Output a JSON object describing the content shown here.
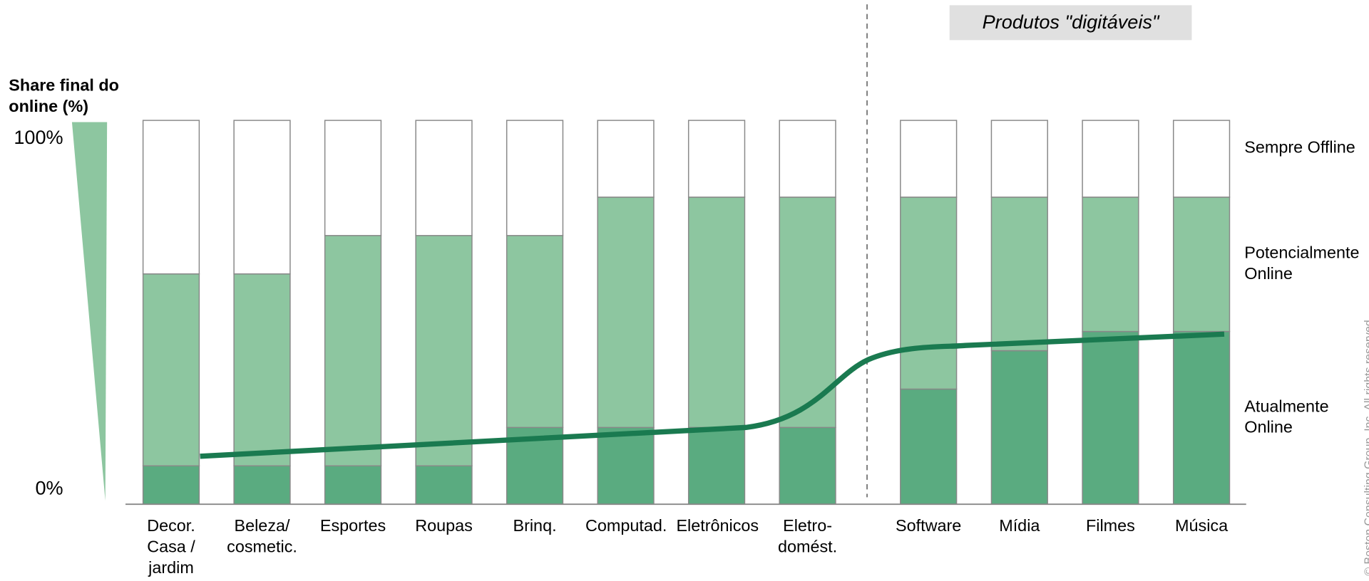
{
  "chart_data": {
    "type": "bar",
    "stacked": true,
    "y_axis_title": "Share final do online (%)",
    "annotation": "Produtos \"digitáveis\"",
    "categories": [
      "Decor. Casa / jardim",
      "Beleza/ cosmetic.",
      "Esportes",
      "Roupas",
      "Brinq.",
      "Computad.",
      "Eletrônicos",
      "Eletro-domést.",
      "Software",
      "Mídia",
      "Filmes",
      "Música"
    ],
    "series": [
      {
        "name": "Atualmente Online",
        "color": "#5aab80",
        "values": [
          10,
          10,
          10,
          10,
          20,
          20,
          20,
          20,
          30,
          40,
          45,
          45
        ]
      },
      {
        "name": "Potencialmente Online",
        "color": "#8dc6a0",
        "values": [
          50,
          50,
          60,
          60,
          50,
          60,
          60,
          60,
          50,
          40,
          35,
          35
        ]
      },
      {
        "name": "Sempre Offline",
        "color": "#ffffff",
        "values": [
          40,
          40,
          30,
          30,
          30,
          20,
          20,
          20,
          20,
          20,
          20,
          20
        ]
      }
    ],
    "ylim": [
      0,
      100
    ],
    "yticks": [
      {
        "value": 0,
        "label": "0%"
      },
      {
        "value": 100,
        "label": "100%"
      }
    ]
  },
  "copyright": "© Boston Consulting Group, Inc. All rights reserved."
}
